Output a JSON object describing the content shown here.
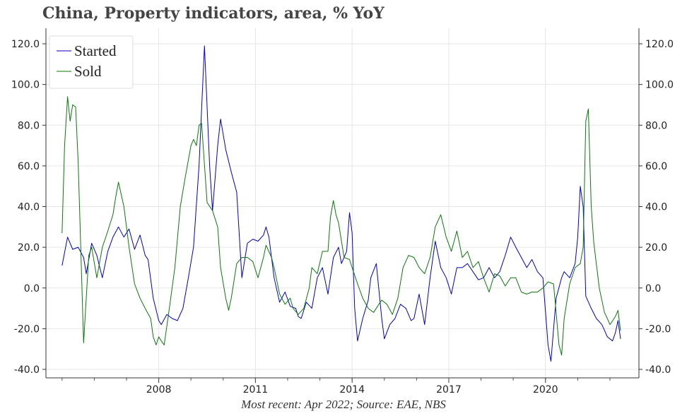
{
  "chart_data": {
    "type": "line",
    "title": "China, Property indicators, area, % YoY",
    "source": "Most recent: Apr 2022; Source: EAE, NBS",
    "xlabel": "",
    "ylabel": "",
    "ylim": [
      -40,
      120
    ],
    "y_ticks": [
      "-40.0",
      "-20.0",
      "0.0",
      "20.0",
      "40.0",
      "60.0",
      "80.0",
      "100.0",
      "120.0"
    ],
    "x_ticks": [
      "2008",
      "2011",
      "2014",
      "2017",
      "2020"
    ],
    "legend_position": "top-left",
    "grid": true,
    "colors": {
      "started": "#0000c8",
      "sold": "#0a7a0a"
    },
    "series": [
      {
        "name": "Started",
        "color": "#0000c8",
        "points": [
          [
            2005.0,
            11
          ],
          [
            2005.17,
            25
          ],
          [
            2005.33,
            19
          ],
          [
            2005.5,
            20
          ],
          [
            2005.67,
            15
          ],
          [
            2005.75,
            7
          ],
          [
            2005.92,
            22
          ],
          [
            2006.08,
            16
          ],
          [
            2006.25,
            5
          ],
          [
            2006.42,
            18
          ],
          [
            2006.58,
            25
          ],
          [
            2006.75,
            30
          ],
          [
            2006.92,
            25
          ],
          [
            2007.08,
            29
          ],
          [
            2007.25,
            19
          ],
          [
            2007.42,
            26
          ],
          [
            2007.58,
            16
          ],
          [
            2007.67,
            14
          ],
          [
            2007.83,
            -5
          ],
          [
            2008.0,
            -16
          ],
          [
            2008.08,
            -18
          ],
          [
            2008.25,
            -13
          ],
          [
            2008.42,
            -15
          ],
          [
            2008.58,
            -16
          ],
          [
            2008.75,
            -10
          ],
          [
            2008.92,
            5
          ],
          [
            2009.08,
            20
          ],
          [
            2009.25,
            60
          ],
          [
            2009.42,
            119
          ],
          [
            2009.58,
            60
          ],
          [
            2009.67,
            38
          ],
          [
            2009.83,
            70
          ],
          [
            2009.92,
            83
          ],
          [
            2010.08,
            68
          ],
          [
            2010.25,
            57
          ],
          [
            2010.42,
            47
          ],
          [
            2010.58,
            5
          ],
          [
            2010.75,
            22
          ],
          [
            2010.92,
            24
          ],
          [
            2011.08,
            23
          ],
          [
            2011.25,
            26
          ],
          [
            2011.33,
            30
          ],
          [
            2011.42,
            25
          ],
          [
            2011.58,
            5
          ],
          [
            2011.75,
            -7
          ],
          [
            2011.92,
            -2
          ],
          [
            2012.08,
            -9
          ],
          [
            2012.25,
            -10
          ],
          [
            2012.33,
            -14
          ],
          [
            2012.42,
            -15
          ],
          [
            2012.58,
            -7
          ],
          [
            2012.75,
            -10
          ],
          [
            2012.92,
            5
          ],
          [
            2013.08,
            10
          ],
          [
            2013.25,
            -3
          ],
          [
            2013.42,
            15
          ],
          [
            2013.58,
            20
          ],
          [
            2013.67,
            12
          ],
          [
            2013.83,
            18
          ],
          [
            2013.92,
            37
          ],
          [
            2014.0,
            27
          ],
          [
            2014.08,
            -10
          ],
          [
            2014.17,
            -26
          ],
          [
            2014.33,
            -15
          ],
          [
            2014.5,
            -6
          ],
          [
            2014.58,
            5
          ],
          [
            2014.75,
            12
          ],
          [
            2014.92,
            -15
          ],
          [
            2015.0,
            -25
          ],
          [
            2015.17,
            -18
          ],
          [
            2015.33,
            -15
          ],
          [
            2015.5,
            -8
          ],
          [
            2015.67,
            -10
          ],
          [
            2015.83,
            -16
          ],
          [
            2015.92,
            -15
          ],
          [
            2016.08,
            -3
          ],
          [
            2016.25,
            -18
          ],
          [
            2016.42,
            5
          ],
          [
            2016.58,
            23
          ],
          [
            2016.75,
            10
          ],
          [
            2016.92,
            5
          ],
          [
            2017.08,
            -3
          ],
          [
            2017.25,
            10
          ],
          [
            2017.42,
            10
          ],
          [
            2017.58,
            12
          ],
          [
            2017.75,
            8
          ],
          [
            2017.92,
            4
          ],
          [
            2018.08,
            5
          ],
          [
            2018.25,
            10
          ],
          [
            2018.42,
            5
          ],
          [
            2018.58,
            8
          ],
          [
            2018.75,
            16
          ],
          [
            2018.92,
            25
          ],
          [
            2019.08,
            20
          ],
          [
            2019.25,
            15
          ],
          [
            2019.42,
            10
          ],
          [
            2019.58,
            14
          ],
          [
            2019.75,
            8
          ],
          [
            2019.92,
            5
          ],
          [
            2020.08,
            -28
          ],
          [
            2020.17,
            -36
          ],
          [
            2020.33,
            -5
          ],
          [
            2020.5,
            5
          ],
          [
            2020.58,
            8
          ],
          [
            2020.75,
            5
          ],
          [
            2020.92,
            12
          ],
          [
            2021.0,
            25
          ],
          [
            2021.08,
            50
          ],
          [
            2021.17,
            40
          ],
          [
            2021.25,
            -4
          ],
          [
            2021.42,
            -10
          ],
          [
            2021.58,
            -15
          ],
          [
            2021.75,
            -18
          ],
          [
            2021.92,
            -24
          ],
          [
            2022.08,
            -26
          ],
          [
            2022.17,
            -22
          ],
          [
            2022.25,
            -16
          ],
          [
            2022.33,
            -25
          ]
        ]
      },
      {
        "name": "Sold",
        "color": "#0a7a0a",
        "points": [
          [
            2005.0,
            27
          ],
          [
            2005.08,
            70
          ],
          [
            2005.17,
            94
          ],
          [
            2005.25,
            82
          ],
          [
            2005.33,
            90
          ],
          [
            2005.42,
            89
          ],
          [
            2005.5,
            62
          ],
          [
            2005.67,
            -27
          ],
          [
            2005.83,
            16
          ],
          [
            2005.92,
            20
          ],
          [
            2006.08,
            5
          ],
          [
            2006.25,
            20
          ],
          [
            2006.42,
            28
          ],
          [
            2006.58,
            36
          ],
          [
            2006.67,
            45
          ],
          [
            2006.75,
            52
          ],
          [
            2006.92,
            40
          ],
          [
            2007.08,
            20
          ],
          [
            2007.25,
            2
          ],
          [
            2007.42,
            -5
          ],
          [
            2007.58,
            -10
          ],
          [
            2007.75,
            -15
          ],
          [
            2007.83,
            -24
          ],
          [
            2007.92,
            -28
          ],
          [
            2008.0,
            -24
          ],
          [
            2008.08,
            -26
          ],
          [
            2008.17,
            -28
          ],
          [
            2008.33,
            -10
          ],
          [
            2008.5,
            10
          ],
          [
            2008.67,
            40
          ],
          [
            2008.83,
            55
          ],
          [
            2009.0,
            70
          ],
          [
            2009.08,
            73
          ],
          [
            2009.17,
            70
          ],
          [
            2009.25,
            80
          ],
          [
            2009.33,
            81
          ],
          [
            2009.5,
            42
          ],
          [
            2009.67,
            38
          ],
          [
            2009.83,
            30
          ],
          [
            2009.92,
            10
          ],
          [
            2010.08,
            -5
          ],
          [
            2010.17,
            -11
          ],
          [
            2010.25,
            -5
          ],
          [
            2010.42,
            12
          ],
          [
            2010.58,
            15
          ],
          [
            2010.75,
            15
          ],
          [
            2010.92,
            13
          ],
          [
            2011.08,
            5
          ],
          [
            2011.25,
            15
          ],
          [
            2011.33,
            21
          ],
          [
            2011.5,
            15
          ],
          [
            2011.58,
            10
          ],
          [
            2011.75,
            -3
          ],
          [
            2011.92,
            -8
          ],
          [
            2012.08,
            -5
          ],
          [
            2012.17,
            -10
          ],
          [
            2012.33,
            -13
          ],
          [
            2012.5,
            -10
          ],
          [
            2012.67,
            0
          ],
          [
            2012.75,
            10
          ],
          [
            2012.92,
            7
          ],
          [
            2013.08,
            18
          ],
          [
            2013.25,
            18
          ],
          [
            2013.33,
            35
          ],
          [
            2013.42,
            43
          ],
          [
            2013.5,
            36
          ],
          [
            2013.58,
            32
          ],
          [
            2013.75,
            15
          ],
          [
            2013.92,
            14
          ],
          [
            2014.0,
            10
          ],
          [
            2014.17,
            2
          ],
          [
            2014.33,
            -5
          ],
          [
            2014.5,
            -10
          ],
          [
            2014.67,
            -12
          ],
          [
            2014.83,
            -8
          ],
          [
            2014.92,
            -6
          ],
          [
            2015.08,
            -8
          ],
          [
            2015.25,
            -13
          ],
          [
            2015.42,
            -5
          ],
          [
            2015.58,
            10
          ],
          [
            2015.75,
            16
          ],
          [
            2015.92,
            15
          ],
          [
            2016.08,
            10
          ],
          [
            2016.25,
            7
          ],
          [
            2016.42,
            15
          ],
          [
            2016.58,
            30
          ],
          [
            2016.75,
            36
          ],
          [
            2016.92,
            25
          ],
          [
            2017.08,
            18
          ],
          [
            2017.25,
            28
          ],
          [
            2017.42,
            15
          ],
          [
            2017.58,
            18
          ],
          [
            2017.75,
            10
          ],
          [
            2017.92,
            13
          ],
          [
            2018.08,
            5
          ],
          [
            2018.25,
            -2
          ],
          [
            2018.42,
            7
          ],
          [
            2018.58,
            6
          ],
          [
            2018.75,
            1
          ],
          [
            2018.92,
            5
          ],
          [
            2019.08,
            5
          ],
          [
            2019.25,
            -2
          ],
          [
            2019.42,
            -3
          ],
          [
            2019.58,
            -2
          ],
          [
            2019.75,
            -2
          ],
          [
            2019.92,
            0
          ],
          [
            2020.08,
            3
          ],
          [
            2020.25,
            2
          ],
          [
            2020.42,
            -28
          ],
          [
            2020.5,
            -33
          ],
          [
            2020.58,
            -15
          ],
          [
            2020.75,
            2
          ],
          [
            2020.92,
            10
          ],
          [
            2021.08,
            12
          ],
          [
            2021.17,
            20
          ],
          [
            2021.25,
            82
          ],
          [
            2021.33,
            88
          ],
          [
            2021.42,
            40
          ],
          [
            2021.5,
            22
          ],
          [
            2021.67,
            0
          ],
          [
            2021.83,
            -12
          ],
          [
            2021.92,
            -15
          ],
          [
            2022.0,
            -18
          ],
          [
            2022.17,
            -14
          ],
          [
            2022.25,
            -11
          ],
          [
            2022.33,
            -21
          ]
        ]
      }
    ]
  }
}
